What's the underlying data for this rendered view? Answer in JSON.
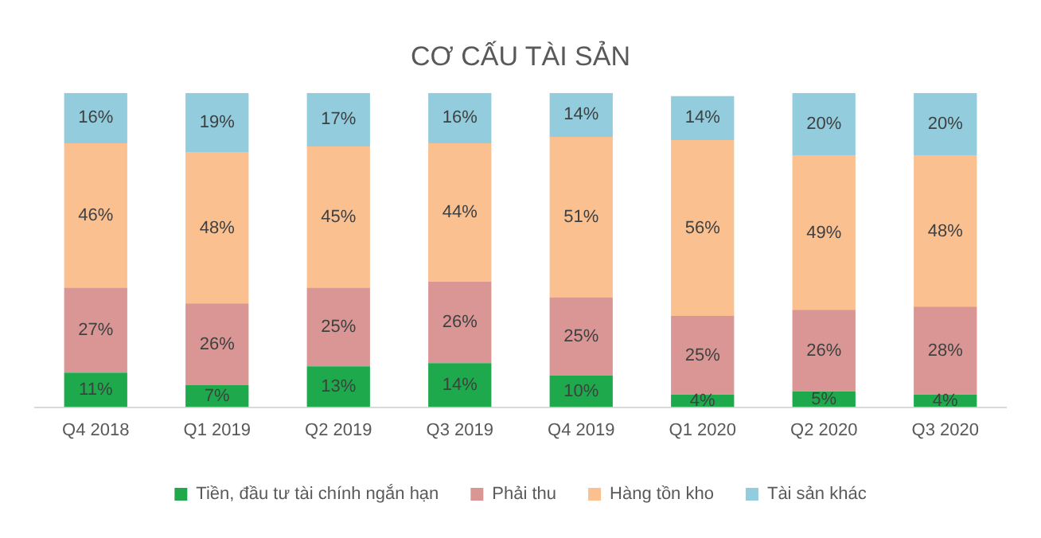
{
  "chart_data": {
    "type": "bar",
    "title": "CƠ CẤU TÀI SẢN",
    "stacked": true,
    "legend": "bottom",
    "grid": false,
    "tick_labels": "x",
    "categories": [
      "Q4 2018",
      "Q1 2019",
      "Q2 2019",
      "Q3 2019",
      "Q4 2019",
      "Q1 2020",
      "Q2 2020",
      "Q3 2020"
    ],
    "series": [
      {
        "name": "Tiền, đầu tư tài chính ngắn hạn",
        "color": "#1eaa4c",
        "values": [
          11,
          7,
          13,
          14,
          10,
          4,
          5,
          4
        ],
        "value_labels": [
          "11%",
          "7%",
          "13%",
          "14%",
          "10%",
          "4%",
          "5%",
          "4%"
        ]
      },
      {
        "name": "Phải thu",
        "color": "#d99694",
        "values": [
          27,
          26,
          25,
          26,
          25,
          25,
          26,
          28
        ],
        "value_labels": [
          "27%",
          "26%",
          "25%",
          "26%",
          "25%",
          "25%",
          "26%",
          "28%"
        ]
      },
      {
        "name": "Hàng tồn kho",
        "color": "#fac090",
        "values": [
          46,
          48,
          45,
          44,
          51,
          56,
          49,
          48
        ],
        "value_labels": [
          "46%",
          "48%",
          "45%",
          "44%",
          "51%",
          "56%",
          "49%",
          "48%"
        ]
      },
      {
        "name": "Tài sản khác",
        "color": "#93cddd",
        "values": [
          16,
          19,
          17,
          16,
          14,
          14,
          20,
          20
        ],
        "value_labels": [
          "16%",
          "19%",
          "17%",
          "16%",
          "14%",
          "14%",
          "20%",
          "20%"
        ]
      }
    ]
  }
}
